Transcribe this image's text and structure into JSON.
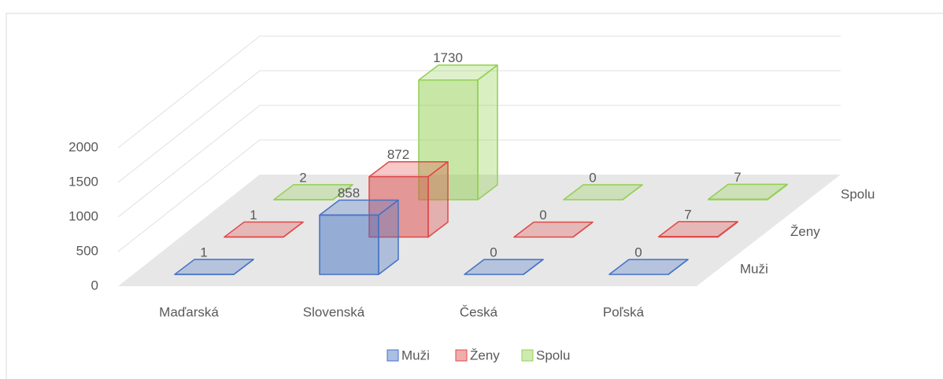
{
  "chart_data": {
    "type": "bar3d",
    "categories": [
      "Maďarská",
      "Slovenská",
      "Česká",
      "Poľská"
    ],
    "series": [
      {
        "name": "Muži",
        "color": "#4472c4",
        "values": [
          1,
          858,
          0,
          0
        ]
      },
      {
        "name": "Ženy",
        "color": "#e04848",
        "values": [
          1,
          872,
          0,
          7
        ]
      },
      {
        "name": "Spolu",
        "color": "#92d050",
        "values": [
          2,
          1730,
          0,
          7
        ]
      }
    ],
    "ylim": [
      0,
      2000
    ],
    "yticks": [
      0,
      500,
      1000,
      1500,
      2000
    ],
    "grid": true
  }
}
